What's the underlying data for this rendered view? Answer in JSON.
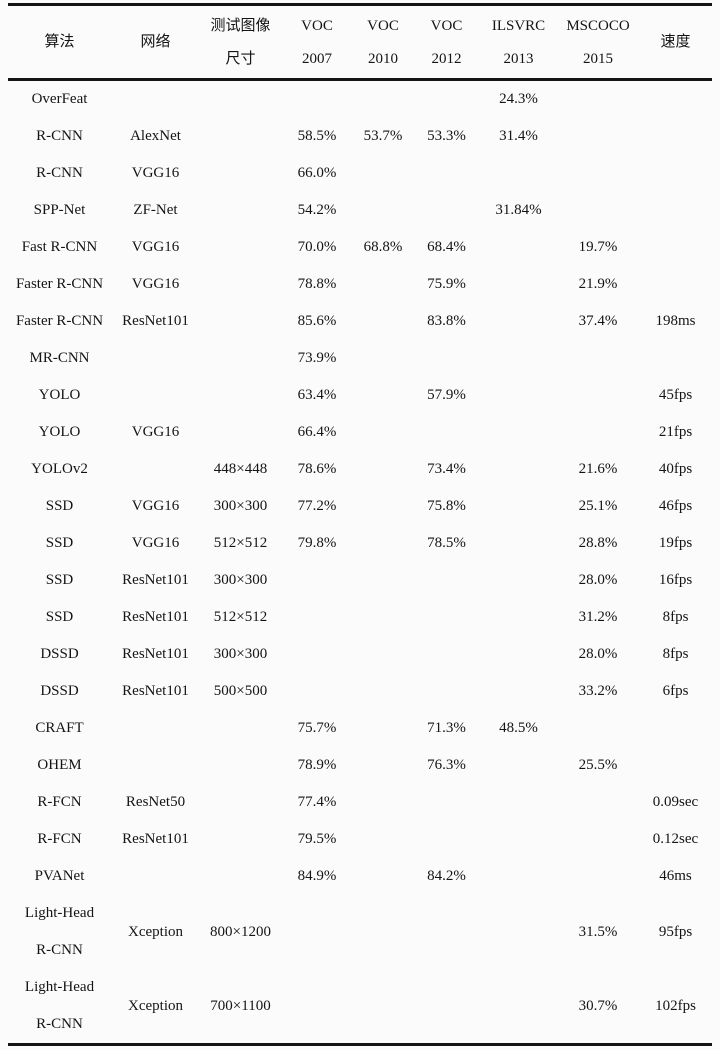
{
  "table": {
    "column_keys": [
      "algorithm",
      "network",
      "input-size",
      "voc2007",
      "voc2010",
      "voc2012",
      "ilsvrc2013",
      "mscoco2015",
      "speed"
    ],
    "headers": [
      {
        "line1": "算法",
        "line2": ""
      },
      {
        "line1": "网络",
        "line2": ""
      },
      {
        "line1": "测试图像",
        "line2": "尺寸"
      },
      {
        "line1": "VOC",
        "line2": "2007"
      },
      {
        "line1": "VOC",
        "line2": "2010"
      },
      {
        "line1": "VOC",
        "line2": "2012"
      },
      {
        "line1": "ILSVRC",
        "line2": "2013"
      },
      {
        "line1": "MSCOCO",
        "line2": "2015"
      },
      {
        "line1": "速度",
        "line2": ""
      }
    ],
    "rows": [
      [
        "OverFeat",
        "",
        "",
        "",
        "",
        "",
        "24.3%",
        "",
        ""
      ],
      [
        "R-CNN",
        "AlexNet",
        "",
        "58.5%",
        "53.7%",
        "53.3%",
        "31.4%",
        "",
        ""
      ],
      [
        "R-CNN",
        "VGG16",
        "",
        "66.0%",
        "",
        "",
        "",
        "",
        ""
      ],
      [
        "SPP-Net",
        "ZF-Net",
        "",
        "54.2%",
        "",
        "",
        "31.84%",
        "",
        ""
      ],
      [
        "Fast R-CNN",
        "VGG16",
        "",
        "70.0%",
        "68.8%",
        "68.4%",
        "",
        "19.7%",
        ""
      ],
      [
        "Faster R-CNN",
        "VGG16",
        "",
        "78.8%",
        "",
        "75.9%",
        "",
        "21.9%",
        ""
      ],
      [
        "Faster R-CNN",
        "ResNet101",
        "",
        "85.6%",
        "",
        "83.8%",
        "",
        "37.4%",
        "198ms"
      ],
      [
        "MR-CNN",
        "",
        "",
        "73.9%",
        "",
        "",
        "",
        "",
        ""
      ],
      [
        "YOLO",
        "",
        "",
        "63.4%",
        "",
        "57.9%",
        "",
        "",
        "45fps"
      ],
      [
        "YOLO",
        "VGG16",
        "",
        "66.4%",
        "",
        "",
        "",
        "",
        "21fps"
      ],
      [
        "YOLOv2",
        "",
        "448×448",
        "78.6%",
        "",
        "73.4%",
        "",
        "21.6%",
        "40fps"
      ],
      [
        "SSD",
        "VGG16",
        "300×300",
        "77.2%",
        "",
        "75.8%",
        "",
        "25.1%",
        "46fps"
      ],
      [
        "SSD",
        "VGG16",
        "512×512",
        "79.8%",
        "",
        "78.5%",
        "",
        "28.8%",
        "19fps"
      ],
      [
        "SSD",
        "ResNet101",
        "300×300",
        "",
        "",
        "",
        "",
        "28.0%",
        "16fps"
      ],
      [
        "SSD",
        "ResNet101",
        "512×512",
        "",
        "",
        "",
        "",
        "31.2%",
        "8fps"
      ],
      [
        "DSSD",
        "ResNet101",
        "300×300",
        "",
        "",
        "",
        "",
        "28.0%",
        "8fps"
      ],
      [
        "DSSD",
        "ResNet101",
        "500×500",
        "",
        "",
        "",
        "",
        "33.2%",
        "6fps"
      ],
      [
        "CRAFT",
        "",
        "",
        "75.7%",
        "",
        "71.3%",
        "48.5%",
        "",
        ""
      ],
      [
        "OHEM",
        "",
        "",
        "78.9%",
        "",
        "76.3%",
        "",
        "25.5%",
        ""
      ],
      [
        "R-FCN",
        "ResNet50",
        "",
        "77.4%",
        "",
        "",
        "",
        "",
        "0.09sec"
      ],
      [
        "R-FCN",
        "ResNet101",
        "",
        "79.5%",
        "",
        "",
        "",
        "",
        "0.12sec"
      ],
      [
        "PVANet",
        "",
        "",
        "84.9%",
        "",
        "84.2%",
        "",
        "",
        "46ms"
      ],
      [
        "Light-Head\nR-CNN",
        "Xception",
        "800×1200",
        "",
        "",
        "",
        "",
        "31.5%",
        "95fps"
      ],
      [
        "Light-Head\nR-CNN",
        "Xception",
        "700×1100",
        "",
        "",
        "",
        "",
        "30.7%",
        "102fps"
      ]
    ]
  },
  "colors": {
    "background": "#fbfbfb",
    "text": "#141414",
    "rule": "#141414"
  }
}
